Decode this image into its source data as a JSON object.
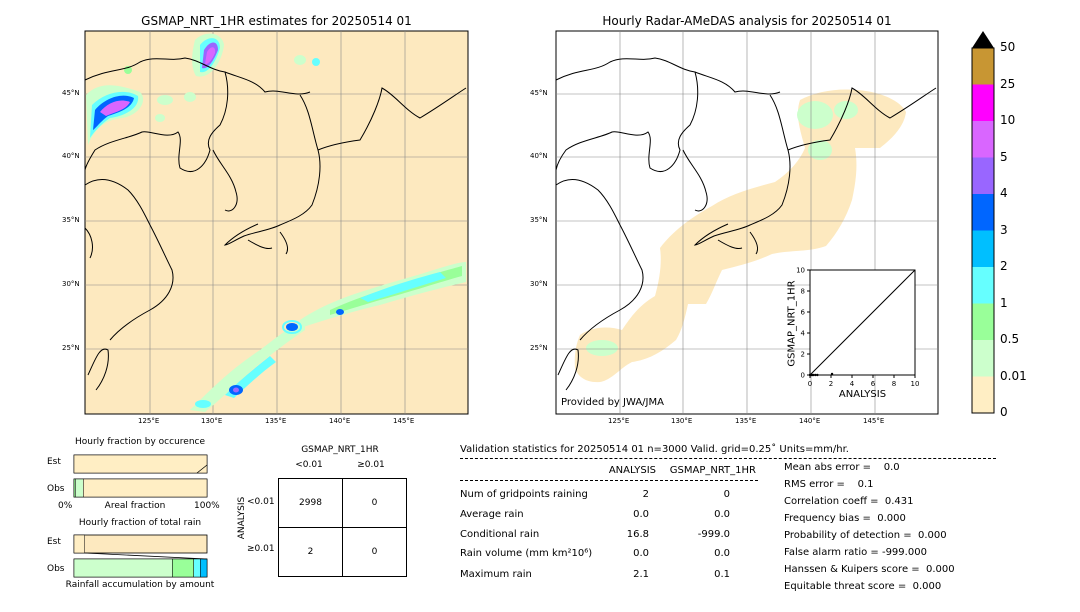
{
  "map_left": {
    "title": "GSMAP_NRT_1HR estimates for 20250514 01",
    "lat_labels": [
      "45°N",
      "40°N",
      "35°N",
      "30°N",
      "25°N"
    ],
    "lon_labels": [
      "125°E",
      "130°E",
      "135°E",
      "140°E",
      "145°E"
    ]
  },
  "map_right": {
    "title": "Hourly Radar-AMeDAS analysis for 20250514 01",
    "lat_labels": [
      "45°N",
      "40°N",
      "35°N",
      "30°N",
      "25°N"
    ],
    "lon_labels": [
      "125°E",
      "130°E",
      "135°E",
      "140°E",
      "145°E"
    ],
    "credit": "Provided by JWA/JMA"
  },
  "colorbar": {
    "labels": [
      "50",
      "25",
      "10",
      "5",
      "4",
      "3",
      "2",
      "1",
      "0.5",
      "0.01",
      "0"
    ],
    "colors": [
      "#c89633",
      "#ff00ff",
      "#d966ff",
      "#9966ff",
      "#0066ff",
      "#00bfff",
      "#66ffff",
      "#99ff99",
      "#ccffcc",
      "#ffeec4"
    ],
    "over_color": "#000000"
  },
  "occurrence": {
    "title": "Hourly fraction by occurence",
    "rows": [
      "Est",
      "Obs"
    ],
    "axis_left": "0%",
    "axis_center": "Areal fraction",
    "axis_right": "100%"
  },
  "total_rain": {
    "title": "Hourly fraction of total rain",
    "rows": [
      "Est",
      "Obs"
    ],
    "footer": "Rainfall accumulation by amount"
  },
  "contingency": {
    "title": "GSMAP_NRT_1HR",
    "col_lt": "<0.01",
    "col_ge": "≥0.01",
    "row_axis": "ANALYSIS",
    "row_lt": "<0.01",
    "row_ge": "≥0.01",
    "cells": [
      "2998",
      "0",
      "2",
      "0"
    ]
  },
  "validation": {
    "header": "Validation statistics for 20250514 01  n=3000 Valid. grid=0.25˚ Units=mm/hr.",
    "col_analysis": "ANALYSIS",
    "col_gsmap": "GSMAP_NRT_1HR",
    "rows": [
      {
        "label": "Num of gridpoints raining",
        "a": "2",
        "g": "0"
      },
      {
        "label": "Average rain",
        "a": "0.0",
        "g": "0.0"
      },
      {
        "label": "Conditional rain",
        "a": "16.8",
        "g": "-999.0"
      },
      {
        "label": "Rain volume (mm km²10⁶)",
        "a": "0.0",
        "g": "0.0"
      },
      {
        "label": "Maximum rain",
        "a": "2.1",
        "g": "0.1"
      }
    ],
    "scores": [
      "Mean abs error =    0.0",
      "RMS error =    0.1",
      "Correlation coeff =  0.431",
      "Frequency bias =  0.000",
      "Probability of detection =  0.000",
      "False alarm ratio = -999.000",
      "Hanssen & Kuipers score =  0.000",
      "Equitable threat score =  0.000"
    ]
  },
  "chart_data": [
    {
      "type": "scatter",
      "title": "",
      "xlabel": "ANALYSIS",
      "ylabel": "GSMAP_NRT_1HR",
      "xlim": [
        0,
        10
      ],
      "ylim": [
        0,
        10
      ],
      "x_ticks": [
        "0",
        "2",
        "4",
        "6",
        "8",
        "10"
      ],
      "y_ticks": [
        "0",
        "2",
        "4",
        "6",
        "8",
        "10"
      ],
      "diagonal": true,
      "points": [
        [
          0.0,
          0.0
        ],
        [
          0.1,
          0.0
        ],
        [
          0.2,
          0.0
        ],
        [
          0.3,
          0.0
        ],
        [
          0.5,
          0.0
        ],
        [
          0.7,
          0.0
        ],
        [
          2.1,
          0.1
        ]
      ]
    },
    {
      "type": "bar",
      "title": "Hourly fraction by occurence",
      "categories": [
        "Est",
        "Obs"
      ],
      "series": [
        {
          "values": [
            0.0,
            0.01
          ]
        },
        {
          "values": [
            0.0,
            0.06
          ]
        },
        {
          "values": [
            1.0,
            0.93
          ]
        }
      ],
      "colors": [
        "#99ff99",
        "#ccffcc",
        "#ffeec4"
      ],
      "xlim": [
        0,
        1
      ]
    },
    {
      "type": "bar",
      "title": "Hourly fraction of total rain",
      "categories": [
        "Est",
        "Obs"
      ],
      "series": [
        {
          "values": [
            0.08,
            0.0
          ]
        },
        {
          "values": [
            0.0,
            0.74
          ]
        },
        {
          "values": [
            0.0,
            0.16
          ]
        },
        {
          "values": [
            0.0,
            0.05
          ]
        },
        {
          "values": [
            0.0,
            0.05
          ]
        }
      ],
      "colors": [
        "#ffeec4",
        "#ccffcc",
        "#99ff99",
        "#66ffff",
        "#00bfff"
      ],
      "xlim": [
        0,
        1
      ]
    }
  ]
}
